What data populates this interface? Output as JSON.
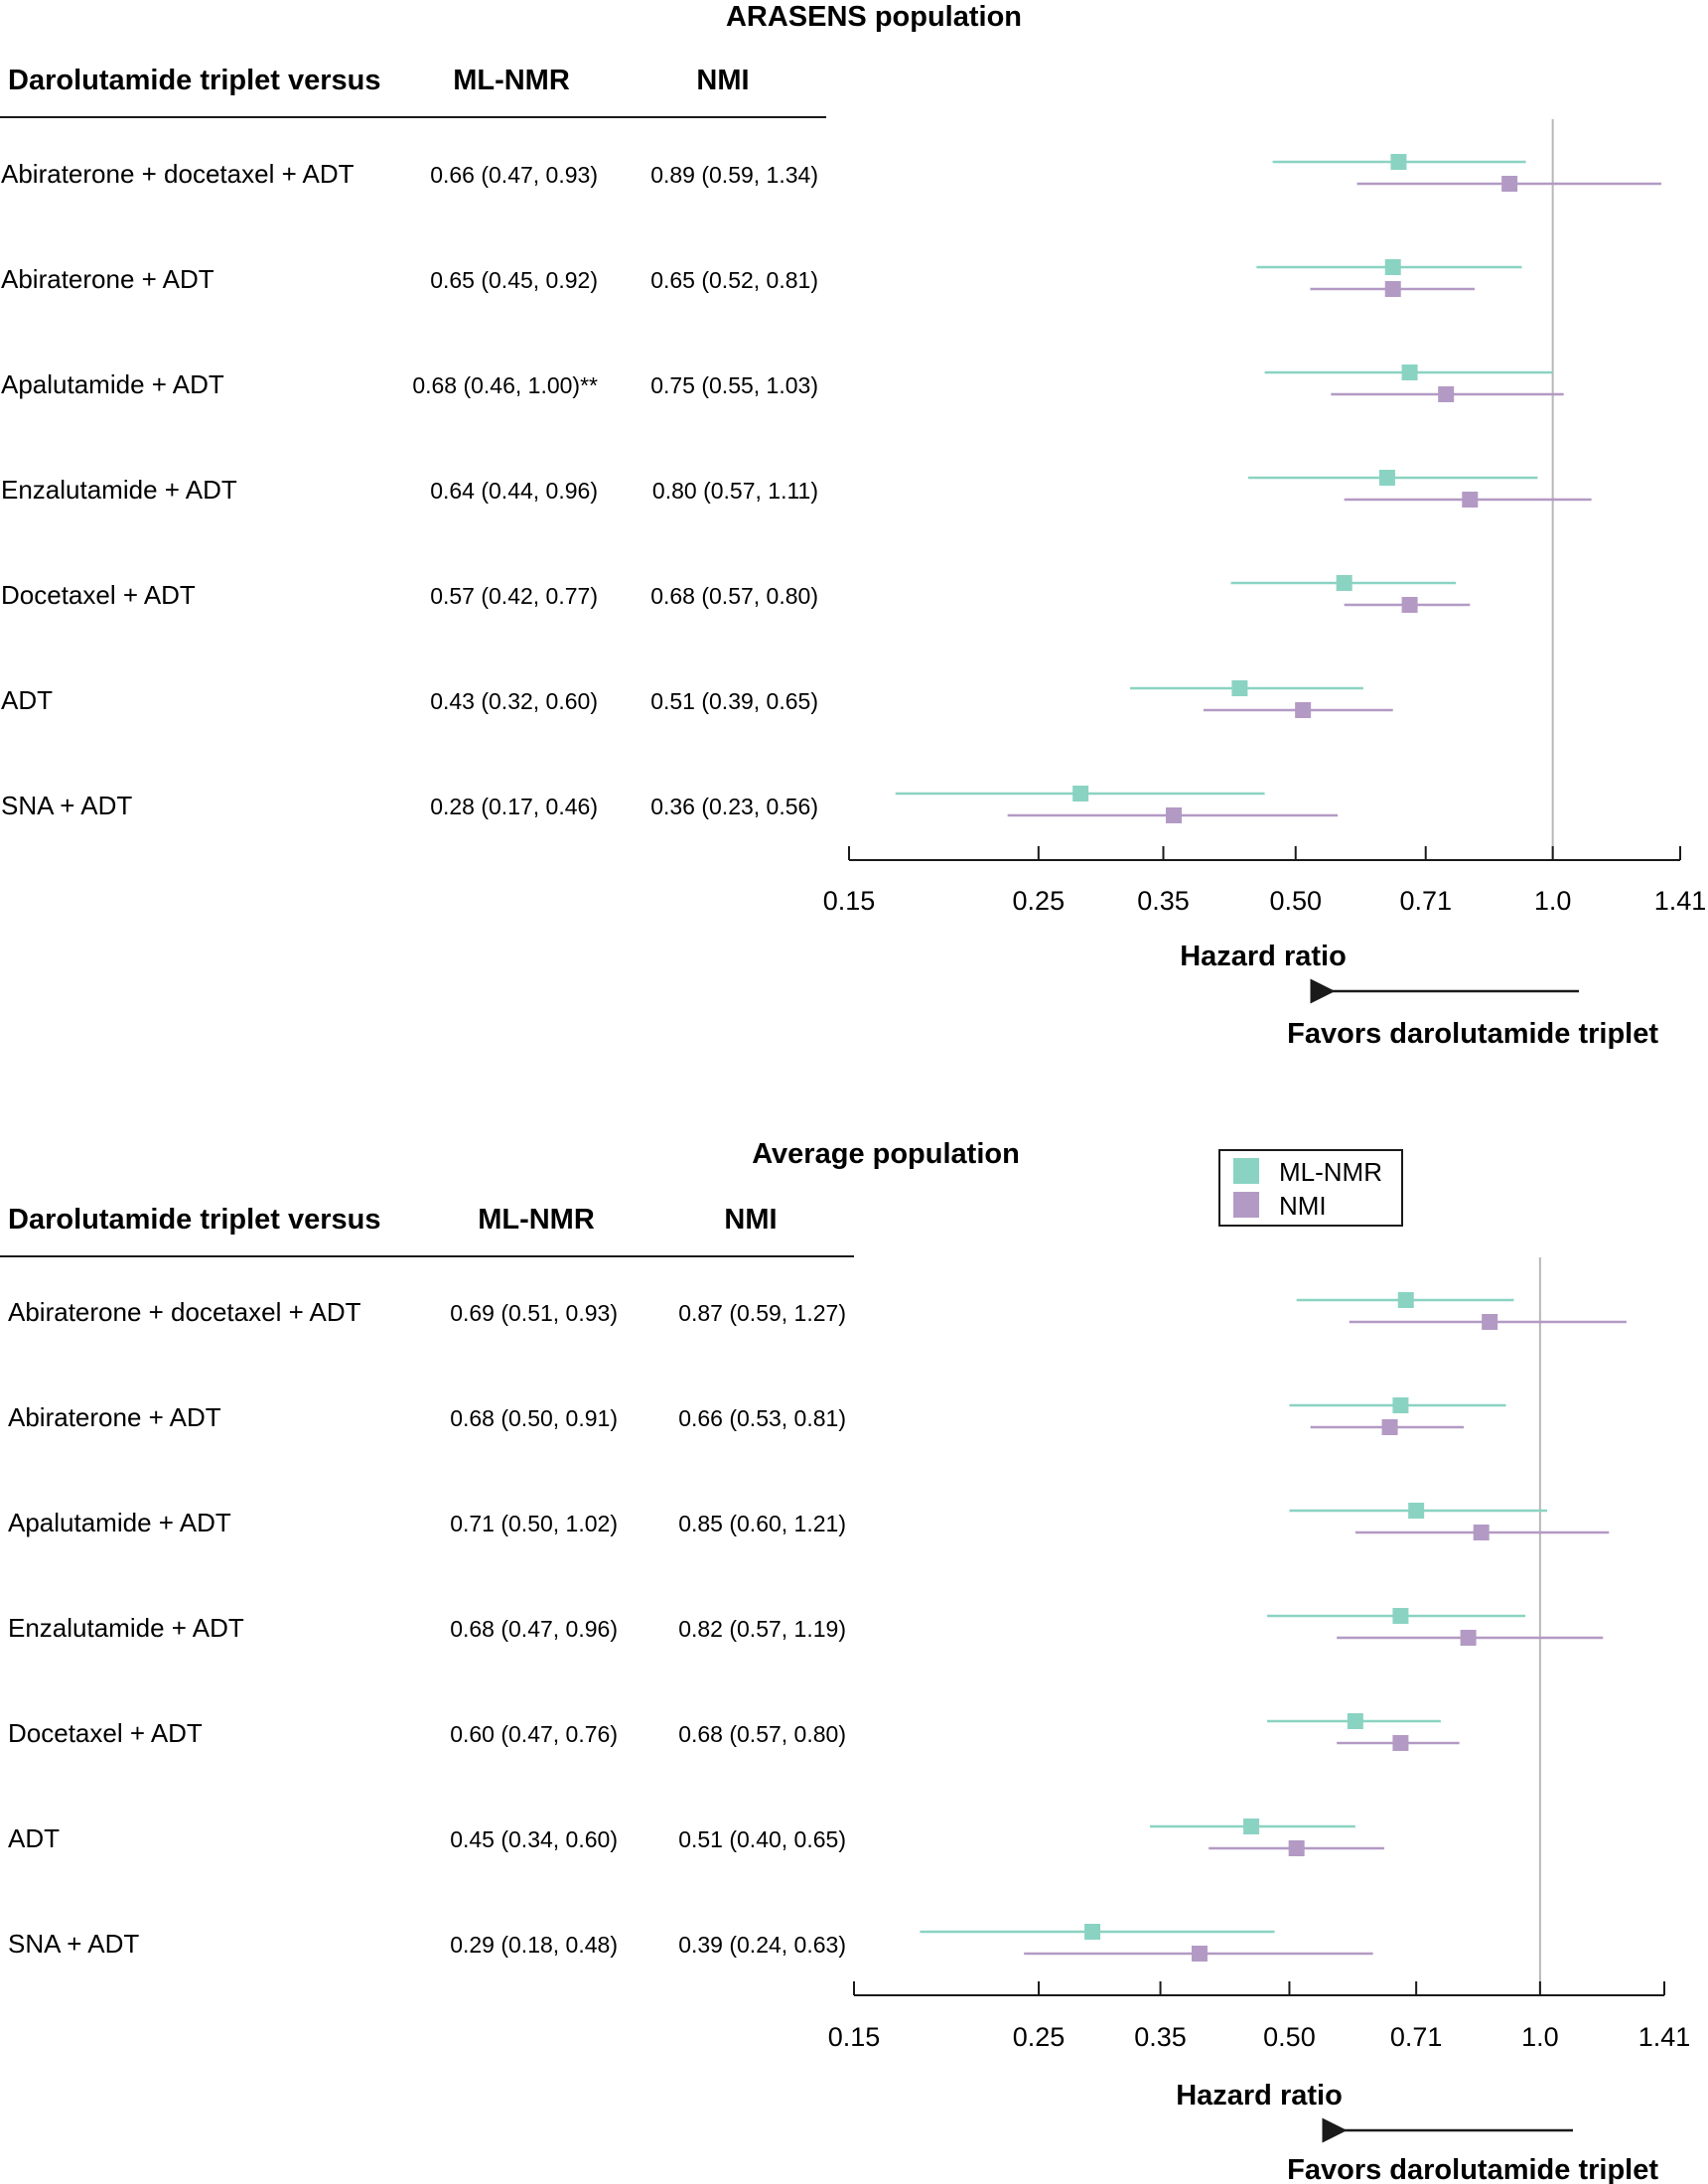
{
  "legend": {
    "entries": [
      {
        "label": "ML-NMR",
        "color": "#8ad3c2"
      },
      {
        "label": "NMI",
        "color": "#b39ac4"
      }
    ]
  },
  "chart_data": [
    {
      "type": "forest",
      "title": "ARASENS population",
      "columns": [
        "Darolutamide triplet versus",
        "ML-NMR",
        "NMI"
      ],
      "rows": [
        {
          "label": "Abiraterone + docetaxel + ADT",
          "ml_text": "0.66 (0.47, 0.93)",
          "nmi_text": "0.89 (0.59, 1.34)",
          "ml": [
            0.66,
            0.47,
            0.93
          ],
          "nmi": [
            0.89,
            0.59,
            1.34
          ]
        },
        {
          "label": "Abiraterone + ADT",
          "ml_text": "0.65 (0.45, 0.92)",
          "nmi_text": "0.65 (0.52, 0.81)",
          "ml": [
            0.65,
            0.45,
            0.92
          ],
          "nmi": [
            0.65,
            0.52,
            0.81
          ]
        },
        {
          "label": "Apalutamide + ADT",
          "ml_text": "0.68 (0.46, 1.00)**",
          "nmi_text": "0.75 (0.55, 1.03)",
          "ml": [
            0.68,
            0.46,
            1.0
          ],
          "nmi": [
            0.75,
            0.55,
            1.03
          ]
        },
        {
          "label": "Enzalutamide + ADT",
          "ml_text": "0.64 (0.44, 0.96)",
          "nmi_text": "0.80 (0.57, 1.11)",
          "ml": [
            0.64,
            0.44,
            0.96
          ],
          "nmi": [
            0.8,
            0.57,
            1.11
          ]
        },
        {
          "label": "Docetaxel + ADT",
          "ml_text": "0.57 (0.42, 0.77)",
          "nmi_text": "0.68 (0.57, 0.80)",
          "ml": [
            0.57,
            0.42,
            0.77
          ],
          "nmi": [
            0.68,
            0.57,
            0.8
          ]
        },
        {
          "label": "ADT",
          "ml_text": "0.43 (0.32, 0.60)",
          "nmi_text": "0.51 (0.39, 0.65)",
          "ml": [
            0.43,
            0.32,
            0.6
          ],
          "nmi": [
            0.51,
            0.39,
            0.65
          ]
        },
        {
          "label": "SNA + ADT",
          "ml_text": "0.28 (0.17, 0.46)",
          "nmi_text": "0.36 (0.23, 0.56)",
          "ml": [
            0.28,
            0.17,
            0.46
          ],
          "nmi": [
            0.36,
            0.23,
            0.56
          ]
        }
      ],
      "x_ticks": [
        "0.15",
        "0.25",
        "0.35",
        "0.50",
        "0.71",
        "1.0",
        "1.41"
      ],
      "x_scale": "log",
      "xlim": [
        0.15,
        1.41
      ],
      "reference_line": 1.0,
      "xlabel": "Hazard ratio",
      "direction_label": "Favors darolutamide triplet"
    },
    {
      "type": "forest",
      "title": "Average population",
      "columns": [
        "Darolutamide triplet versus",
        "ML-NMR",
        "NMI"
      ],
      "rows": [
        {
          "label": "Abiraterone + docetaxel + ADT",
          "ml_text": "0.69 (0.51, 0.93)",
          "nmi_text": "0.87 (0.59, 1.27)",
          "ml": [
            0.69,
            0.51,
            0.93
          ],
          "nmi": [
            0.87,
            0.59,
            1.27
          ]
        },
        {
          "label": "Abiraterone + ADT",
          "ml_text": "0.68 (0.50, 0.91)",
          "nmi_text": "0.66 (0.53, 0.81)",
          "ml": [
            0.68,
            0.5,
            0.91
          ],
          "nmi": [
            0.66,
            0.53,
            0.81
          ]
        },
        {
          "label": "Apalutamide + ADT",
          "ml_text": "0.71 (0.50, 1.02)",
          "nmi_text": "0.85 (0.60, 1.21)",
          "ml": [
            0.71,
            0.5,
            1.02
          ],
          "nmi": [
            0.85,
            0.6,
            1.21
          ]
        },
        {
          "label": "Enzalutamide + ADT",
          "ml_text": "0.68 (0.47, 0.96)",
          "nmi_text": "0.82 (0.57, 1.19)",
          "ml": [
            0.68,
            0.47,
            0.96
          ],
          "nmi": [
            0.82,
            0.57,
            1.19
          ]
        },
        {
          "label": "Docetaxel + ADT",
          "ml_text": "0.60 (0.47, 0.76)",
          "nmi_text": "0.68 (0.57, 0.80)",
          "ml": [
            0.6,
            0.47,
            0.76
          ],
          "nmi": [
            0.68,
            0.57,
            0.8
          ]
        },
        {
          "label": "ADT",
          "ml_text": "0.45 (0.34, 0.60)",
          "nmi_text": "0.51 (0.40, 0.65)",
          "ml": [
            0.45,
            0.34,
            0.6
          ],
          "nmi": [
            0.51,
            0.4,
            0.65
          ]
        },
        {
          "label": "SNA + ADT",
          "ml_text": "0.29 (0.18, 0.48)",
          "nmi_text": "0.39 (0.24, 0.63)",
          "ml": [
            0.29,
            0.18,
            0.48
          ],
          "nmi": [
            0.39,
            0.24,
            0.63
          ]
        }
      ],
      "x_ticks": [
        "0.15",
        "0.25",
        "0.35",
        "0.50",
        "0.71",
        "1.0",
        "1.41"
      ],
      "x_scale": "log",
      "xlim": [
        0.15,
        1.41
      ],
      "reference_line": 1.0,
      "xlabel": "Hazard ratio",
      "direction_label": "Favors darolutamide triplet"
    }
  ]
}
